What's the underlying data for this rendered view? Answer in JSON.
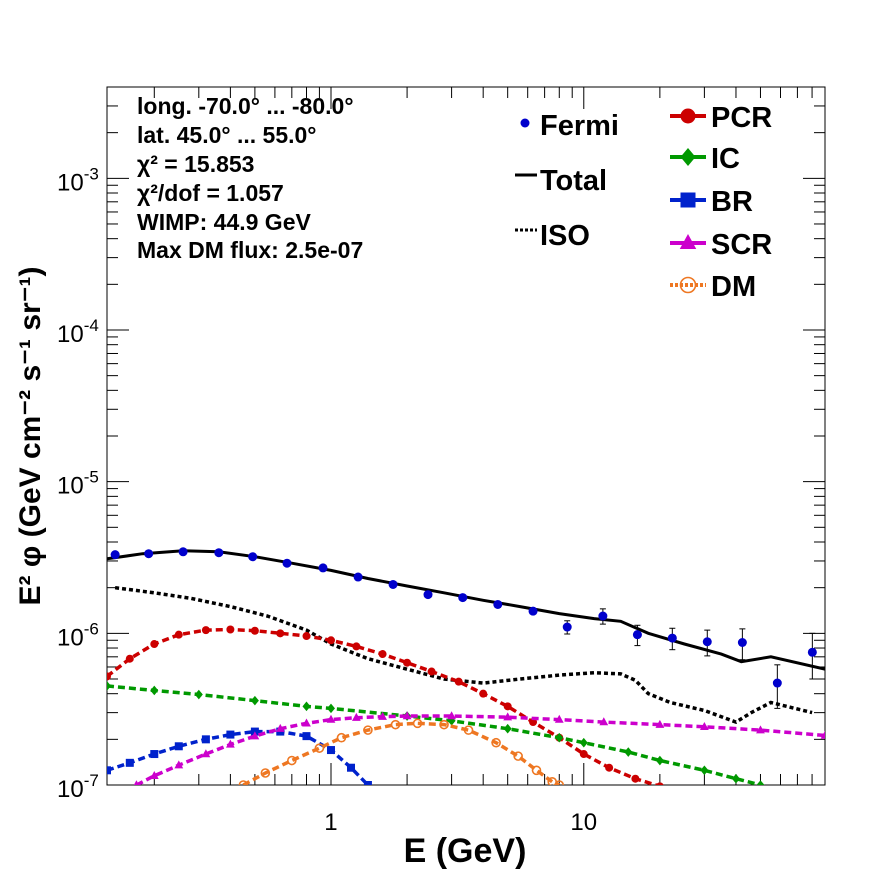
{
  "chart_data": {
    "type": "scatter",
    "title": "",
    "xlabel": "E (GeV)",
    "ylabel": "E² φ (GeV cm⁻² s⁻¹ sr⁻¹)",
    "xscale": "log",
    "yscale": "log",
    "xlim": [
      0.13,
      90
    ],
    "ylim": [
      1e-07,
      0.004
    ],
    "x_ticks": [
      {
        "value": 1,
        "label": "1"
      },
      {
        "value": 10,
        "label": "10"
      }
    ],
    "y_ticks": [
      {
        "value": 1e-07,
        "base": "10",
        "exp": "-7"
      },
      {
        "value": 1e-06,
        "base": "10",
        "exp": "-6"
      },
      {
        "value": 1e-05,
        "base": "10",
        "exp": "-5"
      },
      {
        "value": 0.0001,
        "base": "10",
        "exp": "-4"
      },
      {
        "value": 0.001,
        "base": "10",
        "exp": "-3"
      }
    ],
    "annotations": [
      "long. -70.0° ... -80.0°",
      "lat. 45.0° ... 55.0°",
      "χ² = 15.853",
      "χ²/dof = 1.057",
      "WIMP: 44.9 GeV",
      "Max DM flux: 2.5e-07"
    ],
    "legend_left": [
      {
        "name": "Fermi",
        "style": "marker"
      },
      {
        "name": "Total",
        "style": "solid"
      },
      {
        "name": "ISO",
        "style": "dotted"
      }
    ],
    "legend_right": [
      {
        "name": "PCR",
        "color": "#cc0000",
        "marker": "circle"
      },
      {
        "name": "IC",
        "color": "#009900",
        "marker": "diamond"
      },
      {
        "name": "BR",
        "color": "#0022cc",
        "marker": "square"
      },
      {
        "name": "SCR",
        "color": "#cc00cc",
        "marker": "triangle"
      },
      {
        "name": "DM",
        "color": "#ee7722",
        "marker": "open-circle"
      }
    ],
    "legend_placement": "top-right",
    "grid": false,
    "fermi": {
      "x": [
        0.14,
        0.19,
        0.26,
        0.36,
        0.49,
        0.67,
        0.93,
        1.28,
        1.76,
        2.42,
        3.32,
        4.57,
        6.3,
        8.6,
        11.9,
        16.3,
        22.4,
        30.8,
        42.4,
        58.3,
        80.2
      ],
      "y": [
        3.3e-06,
        3.35e-06,
        3.45e-06,
        3.4e-06,
        3.2e-06,
        2.9e-06,
        2.7e-06,
        2.35e-06,
        2.1e-06,
        1.8e-06,
        1.72e-06,
        1.55e-06,
        1.4e-06,
        1.1e-06,
        1.3e-06,
        9.8e-07,
        9.3e-07,
        8.8e-07,
        8.7e-07,
        4.7e-07,
        7.5e-07
      ],
      "err": [
        0,
        0,
        0,
        0,
        0,
        0,
        0,
        0,
        0,
        0,
        0,
        0,
        0,
        1.1e-07,
        1.5e-07,
        1.5e-07,
        1.5e-07,
        1.7e-07,
        2e-07,
        1.5e-07,
        2.5e-07
      ],
      "color": "#0000cc"
    },
    "series": [
      {
        "name": "Total",
        "color": "#000000",
        "style": "solid",
        "x": [
          0.13,
          0.18,
          0.26,
          0.36,
          0.5,
          0.7,
          1.0,
          1.4,
          2.0,
          2.8,
          4.0,
          5.6,
          8.0,
          11.0,
          14.0,
          18.0,
          25.0,
          35.0,
          42.0,
          55.0,
          90.0
        ],
        "y": [
          3.1e-06,
          3.35e-06,
          3.5e-06,
          3.45e-06,
          3.2e-06,
          2.9e-06,
          2.6e-06,
          2.3e-06,
          2.05e-06,
          1.85e-06,
          1.65e-06,
          1.5e-06,
          1.35e-06,
          1.25e-06,
          1.2e-06,
          1e-06,
          8.5e-07,
          7.3e-07,
          6.5e-07,
          7e-07,
          5.8e-07
        ]
      },
      {
        "name": "ISO",
        "color": "#000000",
        "style": "dotted",
        "x": [
          0.14,
          0.2,
          0.28,
          0.4,
          0.56,
          0.8,
          1.0,
          1.4,
          2.0,
          2.8,
          4.0,
          5.6,
          8.0,
          11.0,
          14.0,
          16.0,
          18.0,
          22.0,
          30.0,
          40.0,
          46.0,
          55.0,
          80.0
        ],
        "y": [
          2e-06,
          1.85e-06,
          1.7e-06,
          1.5e-06,
          1.3e-06,
          1.05e-06,
          8.5e-07,
          6.8e-07,
          5.8e-07,
          5e-07,
          4.7e-07,
          5e-07,
          5.3e-07,
          5.5e-07,
          5.4e-07,
          4.9e-07,
          4e-07,
          3.5e-07,
          3.1e-07,
          2.6e-07,
          3e-07,
          3.5e-07,
          3e-07
        ]
      },
      {
        "name": "PCR",
        "color": "#cc0000",
        "style": "dashed",
        "x": [
          0.13,
          0.16,
          0.2,
          0.25,
          0.32,
          0.4,
          0.5,
          0.63,
          0.8,
          1.0,
          1.26,
          1.6,
          2.0,
          2.5,
          3.2,
          4.0,
          5.0,
          6.3,
          8.0,
          10.0,
          12.6,
          16.0,
          20.0
        ],
        "y": [
          5.2e-07,
          6.8e-07,
          8.5e-07,
          9.8e-07,
          1.05e-06,
          1.06e-06,
          1.04e-06,
          1e-06,
          9.6e-07,
          9e-07,
          8.2e-07,
          7.3e-07,
          6.4e-07,
          5.6e-07,
          4.8e-07,
          4e-07,
          3.3e-07,
          2.6e-07,
          2.05e-07,
          1.6e-07,
          1.3e-07,
          1.1e-07,
          9.8e-08
        ]
      },
      {
        "name": "IC",
        "color": "#009900",
        "style": "dashed",
        "x": [
          0.13,
          0.2,
          0.3,
          0.5,
          0.8,
          1.0,
          2.0,
          3.0,
          5.0,
          8.0,
          10.0,
          15.0,
          20.0,
          30.0,
          40.0,
          50.0
        ],
        "y": [
          4.5e-07,
          4.2e-07,
          3.95e-07,
          3.6e-07,
          3.3e-07,
          3.2e-07,
          2.85e-07,
          2.65e-07,
          2.35e-07,
          2.05e-07,
          1.9e-07,
          1.65e-07,
          1.45e-07,
          1.25e-07,
          1.1e-07,
          1e-07
        ]
      },
      {
        "name": "BR",
        "color": "#0022cc",
        "style": "dashed",
        "x": [
          0.13,
          0.16,
          0.2,
          0.25,
          0.32,
          0.4,
          0.5,
          0.63,
          0.8,
          1.0,
          1.2,
          1.4
        ],
        "y": [
          1.25e-07,
          1.4e-07,
          1.6e-07,
          1.8e-07,
          2e-07,
          2.15e-07,
          2.25e-07,
          2.25e-07,
          2.1e-07,
          1.7e-07,
          1.3e-07,
          1e-07
        ]
      },
      {
        "name": "SCR",
        "color": "#cc00cc",
        "style": "dashed",
        "x": [
          0.17,
          0.2,
          0.25,
          0.32,
          0.4,
          0.5,
          0.63,
          0.8,
          1.0,
          1.26,
          1.6,
          2.0,
          3.0,
          5.0,
          8.0,
          12.0,
          20.0,
          30.0,
          50.0,
          90.0
        ],
        "y": [
          1e-07,
          1.15e-07,
          1.35e-07,
          1.6e-07,
          1.85e-07,
          2.1e-07,
          2.35e-07,
          2.55e-07,
          2.7e-07,
          2.78e-07,
          2.82e-07,
          2.85e-07,
          2.85e-07,
          2.8e-07,
          2.7e-07,
          2.6e-07,
          2.5e-07,
          2.42e-07,
          2.3e-07,
          2.12e-07
        ]
      },
      {
        "name": "DM",
        "color": "#ee7722",
        "style": "dashed",
        "x": [
          0.45,
          0.55,
          0.7,
          0.9,
          1.1,
          1.4,
          1.8,
          2.2,
          2.8,
          3.5,
          4.5,
          5.5,
          6.5,
          7.5,
          8.0
        ],
        "y": [
          1e-07,
          1.2e-07,
          1.45e-07,
          1.75e-07,
          2.05e-07,
          2.3e-07,
          2.5e-07,
          2.55e-07,
          2.5e-07,
          2.3e-07,
          1.9e-07,
          1.55e-07,
          1.25e-07,
          1.05e-07,
          1e-07
        ]
      }
    ]
  }
}
